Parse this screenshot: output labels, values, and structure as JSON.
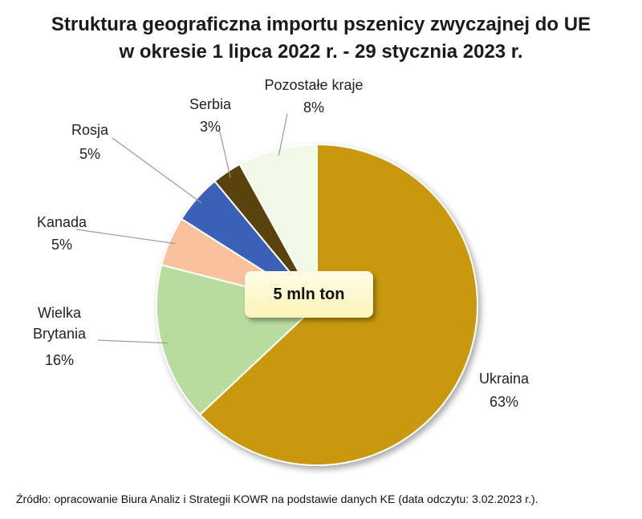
{
  "title_line1": "Struktura geograficzna importu pszenicy zwyczajnej do UE",
  "title_line2": "w okresie 1 lipca 2022 r.  - 29 stycznia 2023 r.",
  "center_label": "5 mln ton",
  "source": "Źródło: opracowanie Biura Analiz i Strategii KOWR na podstawie danych KE (data odczytu: 3.02.2023 r.).",
  "chart_data": {
    "type": "pie",
    "title": "Struktura geograficzna importu pszenicy zwyczajnej do UE w okresie 1 lipca 2022 r.  - 29 stycznia 2023 r.",
    "unit": "%",
    "slices": [
      {
        "name": "Ukraina",
        "value": 63,
        "label": "63%",
        "color": "#C9980C"
      },
      {
        "name": "Wielka Brytania",
        "value": 16,
        "label": "16%",
        "color": "#B8DC9E"
      },
      {
        "name": "Kanada",
        "value": 5,
        "label": "5%",
        "color": "#F9C29C"
      },
      {
        "name": "Rosja",
        "value": 5,
        "label": "5%",
        "color": "#3A60B8"
      },
      {
        "name": "Serbia",
        "value": 3,
        "label": "3%",
        "color": "#5A4208"
      },
      {
        "name": "Pozostałe kraje",
        "value": 8,
        "label": "8%",
        "color": "#F2F9E6"
      }
    ]
  }
}
